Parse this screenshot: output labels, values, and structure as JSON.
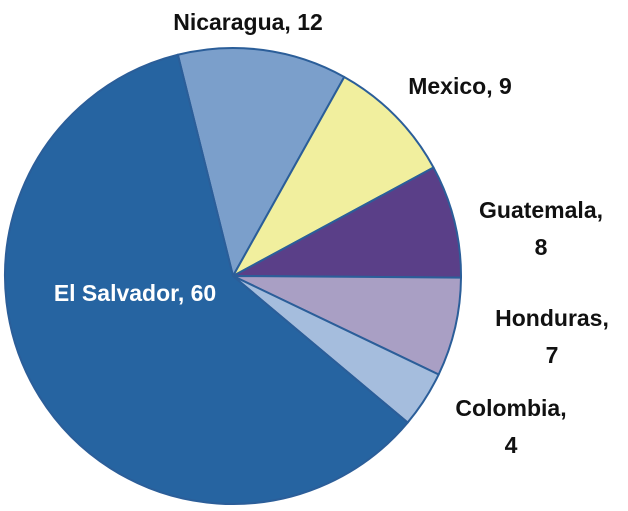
{
  "chart_data": {
    "type": "pie",
    "values": [
      12,
      9,
      8,
      7,
      4,
      60
    ],
    "value_labels": [
      "Nicaragua, 12",
      "Mexico, 9",
      "Guatemala, 8",
      "Honduras, 7",
      "Colombia, 4",
      "El Salvador, 60"
    ],
    "colors": [
      "#7b9fcb",
      "#f1ef9e",
      "#5a3f88",
      "#a99fc4",
      "#a5bddd",
      "#2664a1"
    ]
  }
}
